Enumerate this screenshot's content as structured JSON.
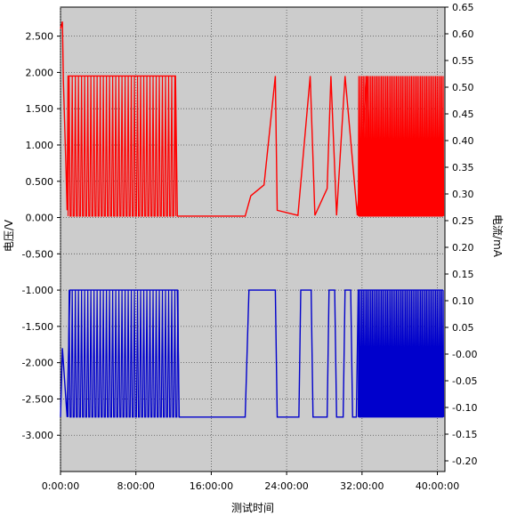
{
  "chart_data": {
    "type": "line",
    "xlabel": "测试时间",
    "ylabel_left": "电压/V",
    "ylabel_right": "电流/mA",
    "x_range_hours": [
      0,
      40.8
    ],
    "x_ticks": [
      0,
      8,
      16,
      24,
      32,
      40
    ],
    "x_tick_labels": [
      "0:00:00",
      "8:00:00",
      "16:00:00",
      "24:00:00",
      "32:00:00",
      "40:00:00"
    ],
    "y_left": {
      "range": [
        -3.5,
        2.9
      ],
      "ticks": [
        2.5,
        2.0,
        1.5,
        1.0,
        0.5,
        0.0,
        -0.5,
        -1.0,
        -1.5,
        -2.0,
        -2.5,
        -3.0
      ],
      "tick_labels": [
        "2.500",
        "2.000",
        "1.500",
        "1.000",
        "0.500",
        "0.000",
        "-0.500",
        "-1.000",
        "-1.500",
        "-2.000",
        "-2.500",
        "-3.000"
      ]
    },
    "y_right": {
      "range": [
        -0.22,
        0.65
      ],
      "ticks": [
        0.65,
        0.6,
        0.55,
        0.5,
        0.45,
        0.4,
        0.35,
        0.3,
        0.25,
        0.2,
        0.15,
        0.1,
        0.05,
        0.0,
        -0.05,
        -0.1,
        -0.15,
        -0.2
      ],
      "tick_labels": [
        "0.65",
        "0.60",
        "0.55",
        "0.50",
        "0.45",
        "0.40",
        "0.35",
        "0.30",
        "0.25",
        "0.20",
        "0.15",
        "0.10",
        "0.05",
        "-0.00",
        "-0.05",
        "-0.10",
        "-0.15",
        "-0.20"
      ]
    },
    "grid": true,
    "background_color": "#cccccc",
    "series": [
      {
        "axis": "left",
        "color": "#ff0000",
        "points": [
          [
            0,
            2.6
          ],
          [
            0.2,
            2.7
          ],
          [
            0.3,
            1.9
          ],
          [
            0.6,
            0.6
          ],
          [
            0.7,
            0.1
          ],
          [
            0.8,
            1.95
          ],
          [
            12.2,
            1.95
          ],
          [
            12.4,
            0.02
          ],
          [
            19.6,
            0.02
          ],
          [
            20.2,
            0.3
          ],
          [
            21.6,
            0.45
          ],
          [
            22.8,
            1.95
          ],
          [
            23.0,
            0.1
          ],
          [
            25.2,
            0.03
          ],
          [
            26.5,
            1.95
          ],
          [
            27.0,
            0.03
          ],
          [
            28.3,
            0.4
          ],
          [
            28.7,
            1.95
          ],
          [
            29.3,
            0.03
          ],
          [
            30.2,
            1.95
          ],
          [
            31.5,
            0.03
          ],
          [
            32.5,
            1.95
          ],
          [
            33.0,
            0.03
          ],
          [
            34.0,
            0.7
          ],
          [
            36.0,
            0.6
          ],
          [
            38.0,
            0.5
          ],
          [
            40.6,
            0.4
          ]
        ]
      },
      {
        "axis": "left",
        "color": "#0000cc",
        "points": [
          [
            0,
            -2.75
          ],
          [
            0.2,
            -1.8
          ],
          [
            0.7,
            -2.75
          ],
          [
            1.0,
            -1.0
          ],
          [
            12.4,
            -1.0
          ],
          [
            12.6,
            -2.75
          ],
          [
            19.6,
            -2.75
          ],
          [
            20.0,
            -1.0
          ],
          [
            22.8,
            -1.0
          ],
          [
            23.0,
            -2.75
          ],
          [
            25.3,
            -2.75
          ],
          [
            25.5,
            -1.0
          ],
          [
            26.6,
            -1.0
          ],
          [
            26.8,
            -2.75
          ],
          [
            28.3,
            -2.75
          ],
          [
            28.5,
            -1.0
          ],
          [
            29.1,
            -1.0
          ],
          [
            29.3,
            -2.75
          ],
          [
            30.0,
            -2.75
          ],
          [
            30.2,
            -1.0
          ],
          [
            30.8,
            -1.0
          ],
          [
            31.0,
            -2.75
          ],
          [
            31.4,
            -2.75
          ],
          [
            31.6,
            -1.0
          ],
          [
            40.6,
            -1.0
          ]
        ]
      }
    ]
  }
}
